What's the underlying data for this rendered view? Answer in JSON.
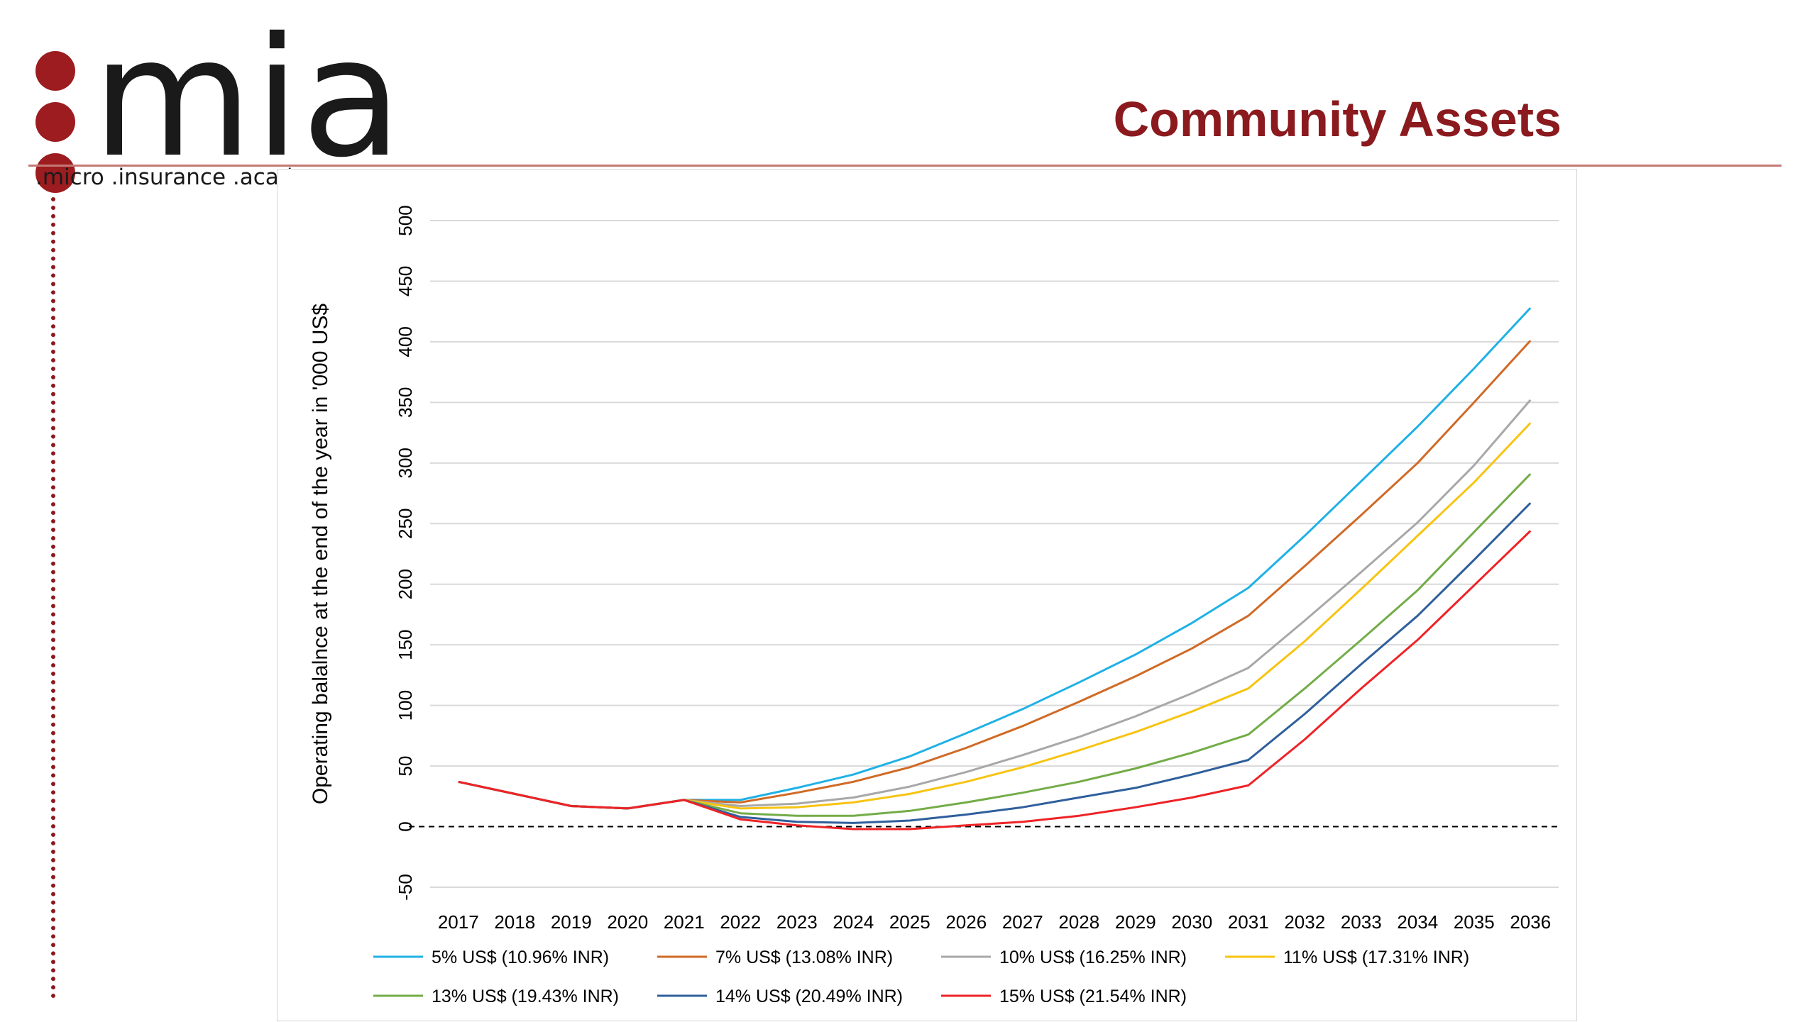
{
  "logo": {
    "brand": "mia",
    "tagline": ".micro .insurance .academy",
    "dot_color": "#9c1c1f"
  },
  "page": {
    "title": "Community Assets"
  },
  "chart_data": {
    "type": "line",
    "title": "",
    "xlabel": "",
    "ylabel": "Operating balalnce at the end of the year in '000 US$",
    "ylim": [
      -50,
      500
    ],
    "yticks": [
      -50,
      0,
      50,
      100,
      150,
      200,
      250,
      300,
      350,
      400,
      450,
      500
    ],
    "grid": true,
    "legend_position": "bottom",
    "reference_line": {
      "y": 0,
      "style": "dashed"
    },
    "categories": [
      "2017",
      "2018",
      "2019",
      "2020",
      "2021",
      "2022",
      "2023",
      "2024",
      "2025",
      "2026",
      "2027",
      "2028",
      "2029",
      "2030",
      "2031",
      "2032",
      "2033",
      "2034",
      "2035",
      "2036"
    ],
    "series": [
      {
        "name": "5% US$ (10.96% INR)",
        "color": "#1fb1e6",
        "values": [
          37,
          27,
          17,
          15,
          22,
          22,
          32,
          43,
          58,
          77,
          97,
          119,
          142,
          168,
          197,
          240,
          285,
          330,
          378,
          428
        ]
      },
      {
        "name": "7% US$ (13.08% INR)",
        "color": "#d06a26",
        "values": [
          37,
          27,
          17,
          15,
          22,
          20,
          28,
          37,
          49,
          65,
          83,
          103,
          124,
          147,
          174,
          215,
          257,
          300,
          350,
          401
        ]
      },
      {
        "name": "10% US$ (16.25% INR)",
        "color": "#a8a8a8",
        "values": [
          37,
          27,
          17,
          15,
          22,
          17,
          19,
          24,
          33,
          45,
          59,
          74,
          91,
          110,
          131,
          170,
          210,
          251,
          298,
          352
        ]
      },
      {
        "name": "11% US$ (17.31% INR)",
        "color": "#f7c413",
        "values": [
          37,
          27,
          17,
          15,
          22,
          15,
          16,
          20,
          27,
          37,
          49,
          63,
          78,
          95,
          114,
          153,
          196,
          240,
          284,
          333
        ]
      },
      {
        "name": "13% US$ (19.43% INR)",
        "color": "#73ac48",
        "values": [
          37,
          27,
          17,
          15,
          22,
          11,
          9,
          9,
          13,
          20,
          28,
          37,
          48,
          61,
          76,
          114,
          154,
          195,
          243,
          291
        ]
      },
      {
        "name": "14% US$ (20.49% INR)",
        "color": "#2f5f9c",
        "values": [
          37,
          27,
          17,
          15,
          22,
          8,
          4,
          3,
          5,
          10,
          16,
          24,
          32,
          43,
          55,
          93,
          134,
          174,
          220,
          267
        ]
      },
      {
        "name": "15% US$ (21.54% INR)",
        "color": "#ee2327",
        "values": [
          37,
          27,
          17,
          15,
          22,
          6,
          1,
          -2,
          -2,
          1,
          4,
          9,
          16,
          24,
          34,
          72,
          114,
          154,
          199,
          244
        ]
      }
    ]
  }
}
